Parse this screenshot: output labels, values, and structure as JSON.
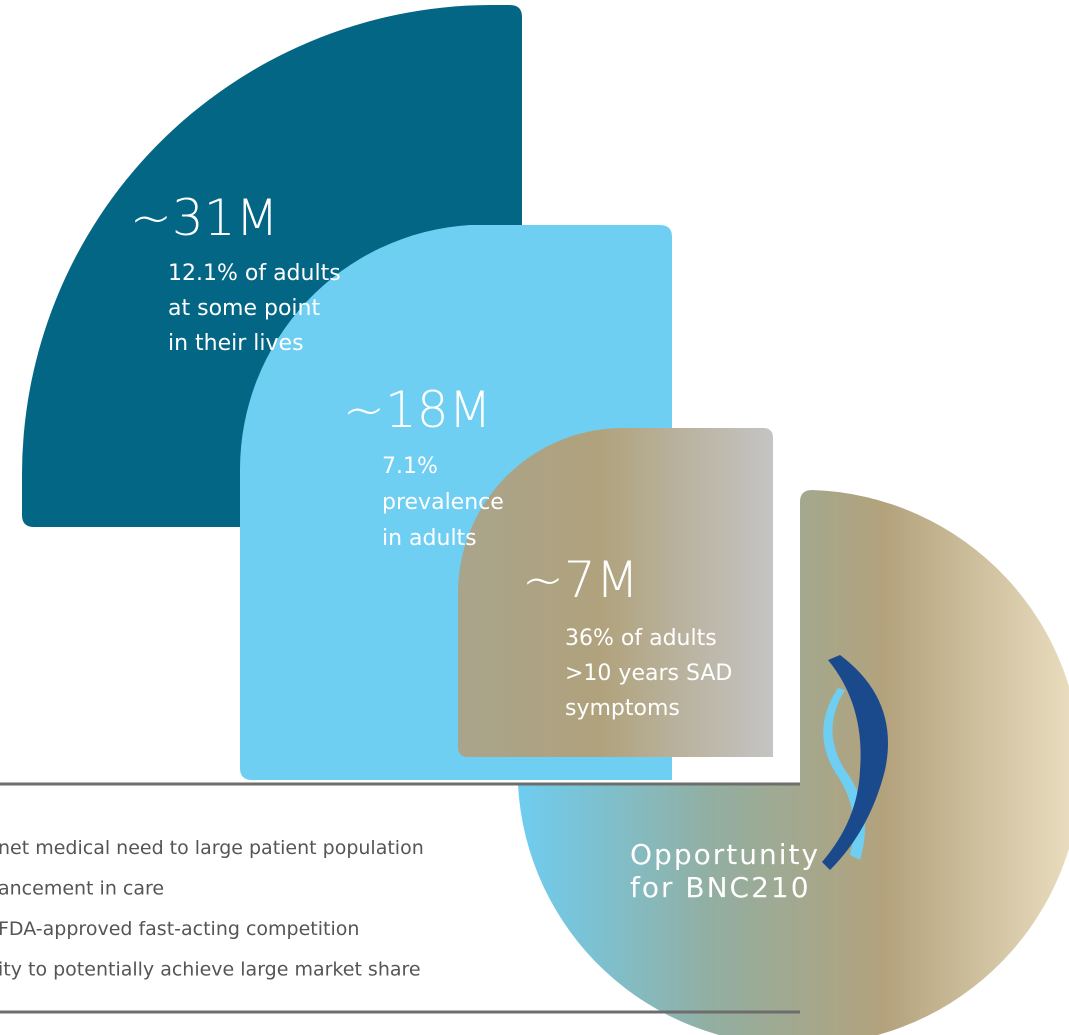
{
  "cards": [
    {
      "figure": "~31M",
      "lines": [
        "12.1% of adults",
        "at some point",
        "in their lives"
      ]
    },
    {
      "figure": "~18M",
      "lines": [
        "7.1%",
        "prevalence",
        "in adults"
      ]
    },
    {
      "figure": "~7M",
      "lines": [
        "36% of adults",
        ">10 years SAD",
        "symptoms"
      ]
    }
  ],
  "bullets": [
    "net medical need to large patient population",
    "ancement in care",
    "FDA-approved fast-acting competition",
    "ity to potentially achieve large market share"
  ],
  "opportunity": [
    "Opportunity",
    "for BNC210"
  ]
}
